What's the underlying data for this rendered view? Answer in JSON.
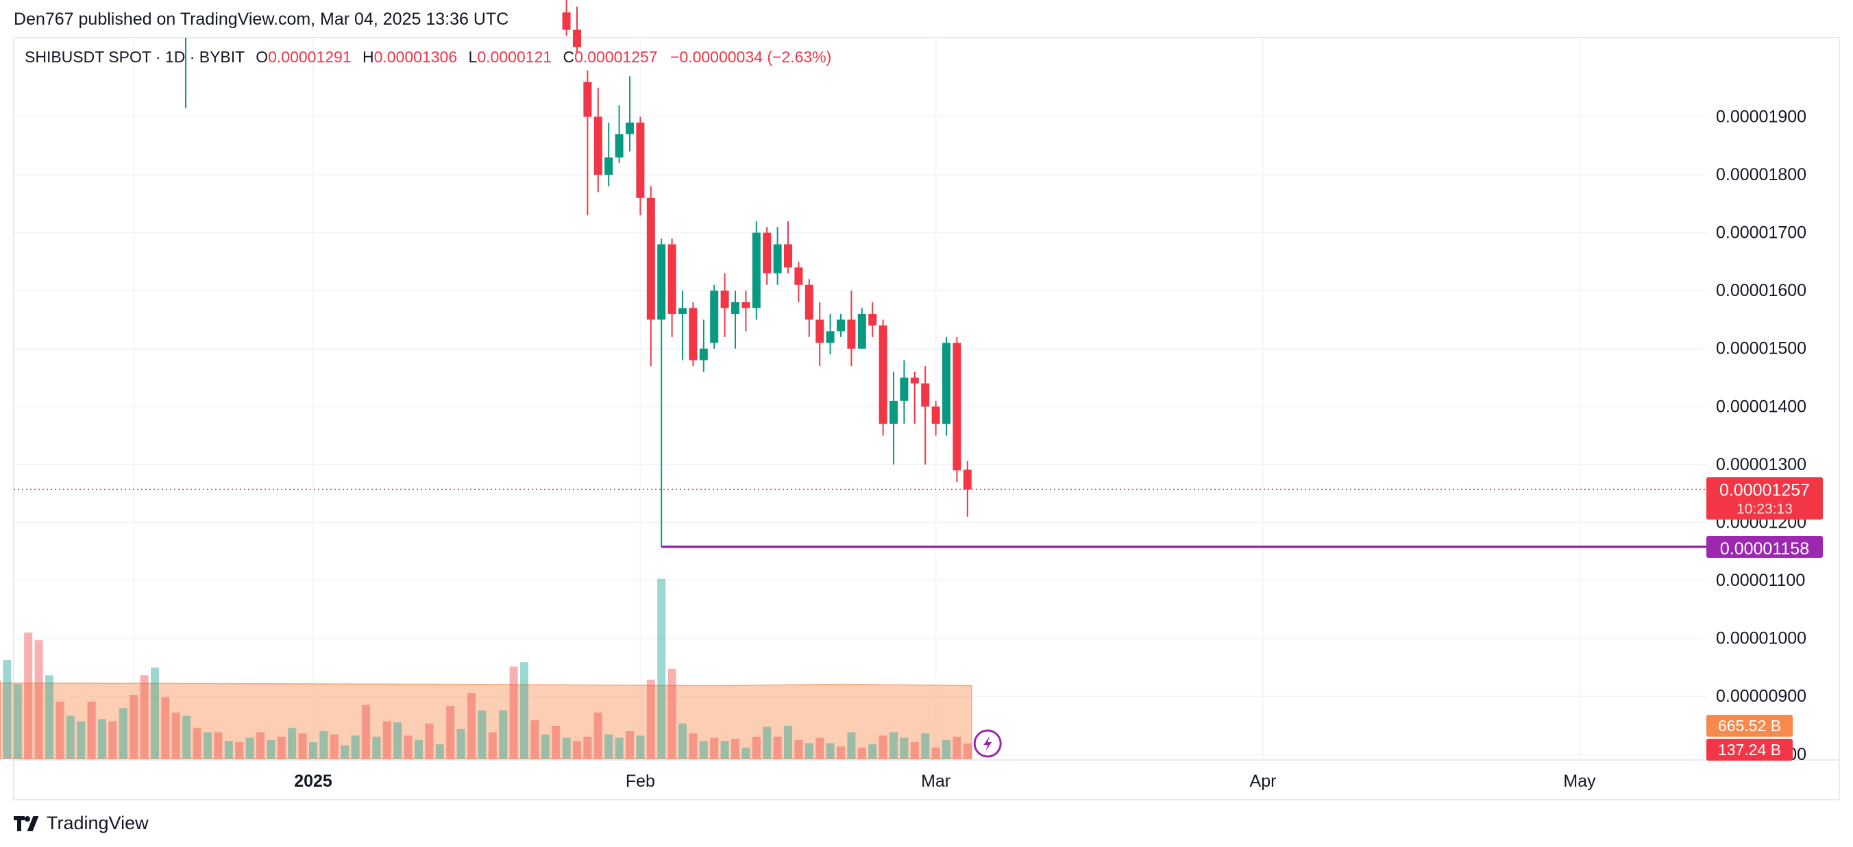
{
  "header": {
    "published": "Den767 published on TradingView.com, Mar 04, 2025 13:36 UTC"
  },
  "legend": {
    "symbol": "SHIBUSDT SPOT · 1D · BYBIT",
    "open_label": "O",
    "open": "0.00001291",
    "high_label": "H",
    "high": "0.00001306",
    "low_label": "L",
    "low": "0.0000121",
    "close_label": "C",
    "close": "0.00001257",
    "change": "−0.00000034 (−2.63%)"
  },
  "footer": {
    "brand": "TradingView",
    "logo_icon": "tradingview-logo-icon"
  },
  "colors": {
    "up": "#089981",
    "down": "#f23645",
    "support": "#9c27b0",
    "volume_ma": "#fbbd99",
    "volume_ma_label": "#f7894d"
  },
  "chart_data": {
    "type": "candlestick",
    "symbol": "SHIBUSDT",
    "interval": "1D",
    "exchange": "BYBIT",
    "y_tick_labels": [
      "0.00001900",
      "0.00001800",
      "0.00001700",
      "0.00001600",
      "0.00001500",
      "0.00001400",
      "0.00001300",
      "0.00001200",
      "0.00001100",
      "0.00001000",
      "0.00000900",
      "0.00000800"
    ],
    "x_tick_labels": [
      "2025",
      "Feb",
      "Mar",
      "Apr",
      "May"
    ],
    "ylim": [
      7.3e-06,
      2.04e-05
    ],
    "date_range": [
      "2024-11-29",
      "2025-05-31"
    ],
    "current_price": "0.00001257",
    "countdown": "10:23:13",
    "support_level": {
      "label": "0.00001158",
      "value": 1.158e-05,
      "from": "2025-02-03"
    },
    "volume_labels": {
      "ma": "665.52 B",
      "last": "137.24 B"
    },
    "candles": [
      {
        "d": "2025-01-25",
        "o": 2.08e-05,
        "h": 2.12e-05,
        "l": 2.04e-05,
        "c": 2.05e-05
      },
      {
        "d": "2025-01-26",
        "o": 2.05e-05,
        "h": 2.09e-05,
        "l": 2.01e-05,
        "c": 2.02e-05
      },
      {
        "d": "2025-01-27",
        "o": 1.96e-05,
        "h": 1.98e-05,
        "l": 1.73e-05,
        "c": 1.9e-05
      },
      {
        "d": "2025-01-28",
        "o": 1.9e-05,
        "h": 1.95e-05,
        "l": 1.77e-05,
        "c": 1.8e-05
      },
      {
        "d": "2025-01-29",
        "o": 1.8e-05,
        "h": 1.89e-05,
        "l": 1.78e-05,
        "c": 1.83e-05
      },
      {
        "d": "2025-01-30",
        "o": 1.83e-05,
        "h": 1.92e-05,
        "l": 1.82e-05,
        "c": 1.87e-05
      },
      {
        "d": "2025-01-31",
        "o": 1.87e-05,
        "h": 1.97e-05,
        "l": 1.84e-05,
        "c": 1.89e-05
      },
      {
        "d": "2025-02-01",
        "o": 1.89e-05,
        "h": 1.9e-05,
        "l": 1.73e-05,
        "c": 1.76e-05
      },
      {
        "d": "2025-02-02",
        "o": 1.76e-05,
        "h": 1.78e-05,
        "l": 1.47e-05,
        "c": 1.55e-05
      },
      {
        "d": "2025-02-03",
        "o": 1.55e-05,
        "h": 1.69e-05,
        "l": 1.158e-05,
        "c": 1.68e-05
      },
      {
        "d": "2025-02-04",
        "o": 1.68e-05,
        "h": 1.69e-05,
        "l": 1.52e-05,
        "c": 1.56e-05
      },
      {
        "d": "2025-02-05",
        "o": 1.56e-05,
        "h": 1.6e-05,
        "l": 1.48e-05,
        "c": 1.57e-05
      },
      {
        "d": "2025-02-06",
        "o": 1.57e-05,
        "h": 1.58e-05,
        "l": 1.47e-05,
        "c": 1.48e-05
      },
      {
        "d": "2025-02-07",
        "o": 1.48e-05,
        "h": 1.55e-05,
        "l": 1.46e-05,
        "c": 1.5e-05
      },
      {
        "d": "2025-02-08",
        "o": 1.51e-05,
        "h": 1.61e-05,
        "l": 1.5e-05,
        "c": 1.6e-05
      },
      {
        "d": "2025-02-09",
        "o": 1.6e-05,
        "h": 1.63e-05,
        "l": 1.52e-05,
        "c": 1.57e-05
      },
      {
        "d": "2025-02-10",
        "o": 1.56e-05,
        "h": 1.6e-05,
        "l": 1.5e-05,
        "c": 1.58e-05
      },
      {
        "d": "2025-02-11",
        "o": 1.58e-05,
        "h": 1.6e-05,
        "l": 1.53e-05,
        "c": 1.57e-05
      },
      {
        "d": "2025-02-12",
        "o": 1.57e-05,
        "h": 1.72e-05,
        "l": 1.55e-05,
        "c": 1.7e-05
      },
      {
        "d": "2025-02-13",
        "o": 1.7e-05,
        "h": 1.71e-05,
        "l": 1.61e-05,
        "c": 1.63e-05
      },
      {
        "d": "2025-02-14",
        "o": 1.63e-05,
        "h": 1.71e-05,
        "l": 1.61e-05,
        "c": 1.68e-05
      },
      {
        "d": "2025-02-15",
        "o": 1.68e-05,
        "h": 1.72e-05,
        "l": 1.63e-05,
        "c": 1.64e-05
      },
      {
        "d": "2025-02-16",
        "o": 1.64e-05,
        "h": 1.65e-05,
        "l": 1.58e-05,
        "c": 1.61e-05
      },
      {
        "d": "2025-02-17",
        "o": 1.61e-05,
        "h": 1.62e-05,
        "l": 1.52e-05,
        "c": 1.55e-05
      },
      {
        "d": "2025-02-18",
        "o": 1.55e-05,
        "h": 1.58e-05,
        "l": 1.47e-05,
        "c": 1.51e-05
      },
      {
        "d": "2025-02-19",
        "o": 1.51e-05,
        "h": 1.56e-05,
        "l": 1.49e-05,
        "c": 1.53e-05
      },
      {
        "d": "2025-02-20",
        "o": 1.53e-05,
        "h": 1.56e-05,
        "l": 1.52e-05,
        "c": 1.55e-05
      },
      {
        "d": "2025-02-21",
        "o": 1.55e-05,
        "h": 1.6e-05,
        "l": 1.47e-05,
        "c": 1.5e-05
      },
      {
        "d": "2025-02-22",
        "o": 1.5e-05,
        "h": 1.57e-05,
        "l": 1.5e-05,
        "c": 1.56e-05
      },
      {
        "d": "2025-02-23",
        "o": 1.56e-05,
        "h": 1.58e-05,
        "l": 1.52e-05,
        "c": 1.54e-05
      },
      {
        "d": "2025-02-24",
        "o": 1.54e-05,
        "h": 1.55e-05,
        "l": 1.35e-05,
        "c": 1.37e-05
      },
      {
        "d": "2025-02-25",
        "o": 1.37e-05,
        "h": 1.46e-05,
        "l": 1.3e-05,
        "c": 1.41e-05
      },
      {
        "d": "2025-02-26",
        "o": 1.41e-05,
        "h": 1.48e-05,
        "l": 1.37e-05,
        "c": 1.45e-05
      },
      {
        "d": "2025-02-27",
        "o": 1.45e-05,
        "h": 1.46e-05,
        "l": 1.37e-05,
        "c": 1.44e-05
      },
      {
        "d": "2025-02-28",
        "o": 1.44e-05,
        "h": 1.47e-05,
        "l": 1.3e-05,
        "c": 1.4e-05
      },
      {
        "d": "2025-03-01",
        "o": 1.4e-05,
        "h": 1.41e-05,
        "l": 1.35e-05,
        "c": 1.37e-05
      },
      {
        "d": "2025-03-02",
        "o": 1.37e-05,
        "h": 1.52e-05,
        "l": 1.35e-05,
        "c": 1.51e-05
      },
      {
        "d": "2025-03-03",
        "o": 1.51e-05,
        "h": 1.52e-05,
        "l": 1.27e-05,
        "c": 1.29e-05
      },
      {
        "d": "2025-03-04",
        "o": 1.291e-05,
        "h": 1.306e-05,
        "l": 1.21e-05,
        "c": 1.257e-05
      }
    ],
    "volumes": {
      "unit": "B",
      "ma_start": 690,
      "ma_end": 665.52,
      "bars": [
        {
          "d": "2024-11-30",
          "v": 1100,
          "up": true
        },
        {
          "d": "2024-12-01",
          "v": 1060,
          "up": false
        },
        {
          "d": "2024-12-02",
          "v": 720,
          "up": false
        },
        {
          "d": "2024-12-03",
          "v": 900,
          "up": true
        },
        {
          "d": "2024-12-04",
          "v": 680,
          "up": true
        },
        {
          "d": "2024-12-05",
          "v": 1150,
          "up": false
        },
        {
          "d": "2024-12-06",
          "v": 1080,
          "up": false
        },
        {
          "d": "2024-12-07",
          "v": 760,
          "up": true
        },
        {
          "d": "2024-12-08",
          "v": 520,
          "up": false
        },
        {
          "d": "2024-12-09",
          "v": 390,
          "up": true
        },
        {
          "d": "2024-12-10",
          "v": 340,
          "up": true
        },
        {
          "d": "2024-12-11",
          "v": 520,
          "up": false
        },
        {
          "d": "2024-12-12",
          "v": 360,
          "up": true
        },
        {
          "d": "2024-12-13",
          "v": 340,
          "up": false
        },
        {
          "d": "2024-12-14",
          "v": 460,
          "up": true
        },
        {
          "d": "2024-12-15",
          "v": 580,
          "up": false
        },
        {
          "d": "2024-12-16",
          "v": 760,
          "up": false
        },
        {
          "d": "2024-12-17",
          "v": 830,
          "up": true
        },
        {
          "d": "2024-12-18",
          "v": 560,
          "up": false
        },
        {
          "d": "2024-12-19",
          "v": 420,
          "up": false
        },
        {
          "d": "2024-12-20",
          "v": 390,
          "up": true
        },
        {
          "d": "2024-12-21",
          "v": 280,
          "up": false
        },
        {
          "d": "2024-12-22",
          "v": 240,
          "up": true
        },
        {
          "d": "2024-12-23",
          "v": 240,
          "up": false
        },
        {
          "d": "2024-12-24",
          "v": 160,
          "up": true
        },
        {
          "d": "2024-12-25",
          "v": 150,
          "up": false
        },
        {
          "d": "2024-12-26",
          "v": 190,
          "up": true
        },
        {
          "d": "2024-12-27",
          "v": 240,
          "up": false
        },
        {
          "d": "2024-12-28",
          "v": 170,
          "up": true
        },
        {
          "d": "2024-12-29",
          "v": 200,
          "up": false
        },
        {
          "d": "2024-12-30",
          "v": 280,
          "up": true
        },
        {
          "d": "2024-12-31",
          "v": 230,
          "up": false
        },
        {
          "d": "2025-01-01",
          "v": 150,
          "up": true
        },
        {
          "d": "2025-01-02",
          "v": 250,
          "up": true
        },
        {
          "d": "2025-01-03",
          "v": 220,
          "up": false
        },
        {
          "d": "2025-01-04",
          "v": 120,
          "up": true
        },
        {
          "d": "2025-01-05",
          "v": 210,
          "up": true
        },
        {
          "d": "2025-01-06",
          "v": 490,
          "up": false
        },
        {
          "d": "2025-01-07",
          "v": 200,
          "up": true
        },
        {
          "d": "2025-01-08",
          "v": 340,
          "up": false
        },
        {
          "d": "2025-01-09",
          "v": 330,
          "up": true
        },
        {
          "d": "2025-01-10",
          "v": 210,
          "up": false
        },
        {
          "d": "2025-01-11",
          "v": 170,
          "up": true
        },
        {
          "d": "2025-01-12",
          "v": 320,
          "up": false
        },
        {
          "d": "2025-01-13",
          "v": 130,
          "up": true
        },
        {
          "d": "2025-01-14",
          "v": 480,
          "up": false
        },
        {
          "d": "2025-01-15",
          "v": 270,
          "up": true
        },
        {
          "d": "2025-01-16",
          "v": 600,
          "up": false
        },
        {
          "d": "2025-01-17",
          "v": 440,
          "up": true
        },
        {
          "d": "2025-01-18",
          "v": 240,
          "up": false
        },
        {
          "d": "2025-01-19",
          "v": 440,
          "up": true
        },
        {
          "d": "2025-01-20",
          "v": 840,
          "up": false
        },
        {
          "d": "2025-01-21",
          "v": 880,
          "up": true
        },
        {
          "d": "2025-01-22",
          "v": 350,
          "up": false
        },
        {
          "d": "2025-01-23",
          "v": 220,
          "up": true
        },
        {
          "d": "2025-01-24",
          "v": 300,
          "up": false
        },
        {
          "d": "2025-01-25",
          "v": 190,
          "up": true
        },
        {
          "d": "2025-01-26",
          "v": 160,
          "up": false
        },
        {
          "d": "2025-01-27",
          "v": 200,
          "up": false
        },
        {
          "d": "2025-01-28",
          "v": 420,
          "up": false
        },
        {
          "d": "2025-01-29",
          "v": 220,
          "up": true
        },
        {
          "d": "2025-01-30",
          "v": 190,
          "up": true
        },
        {
          "d": "2025-01-31",
          "v": 250,
          "up": false
        },
        {
          "d": "2025-02-01",
          "v": 210,
          "up": true
        },
        {
          "d": "2025-02-02",
          "v": 720,
          "up": false
        },
        {
          "d": "2025-02-03",
          "v": 1640,
          "up": true
        },
        {
          "d": "2025-02-04",
          "v": 820,
          "up": false
        },
        {
          "d": "2025-02-05",
          "v": 320,
          "up": true
        },
        {
          "d": "2025-02-06",
          "v": 230,
          "up": false
        },
        {
          "d": "2025-02-07",
          "v": 160,
          "up": true
        },
        {
          "d": "2025-02-08",
          "v": 190,
          "up": false
        },
        {
          "d": "2025-02-09",
          "v": 160,
          "up": true
        },
        {
          "d": "2025-02-10",
          "v": 180,
          "up": false
        },
        {
          "d": "2025-02-11",
          "v": 100,
          "up": true
        },
        {
          "d": "2025-02-12",
          "v": 200,
          "up": false
        },
        {
          "d": "2025-02-13",
          "v": 290,
          "up": true
        },
        {
          "d": "2025-02-14",
          "v": 200,
          "up": false
        },
        {
          "d": "2025-02-15",
          "v": 300,
          "up": true
        },
        {
          "d": "2025-02-16",
          "v": 170,
          "up": false
        },
        {
          "d": "2025-02-17",
          "v": 140,
          "up": true
        },
        {
          "d": "2025-02-18",
          "v": 190,
          "up": false
        },
        {
          "d": "2025-02-19",
          "v": 140,
          "up": true
        },
        {
          "d": "2025-02-20",
          "v": 110,
          "up": false
        },
        {
          "d": "2025-02-21",
          "v": 240,
          "up": true
        },
        {
          "d": "2025-02-22",
          "v": 100,
          "up": false
        },
        {
          "d": "2025-02-23",
          "v": 130,
          "up": true
        },
        {
          "d": "2025-02-24",
          "v": 210,
          "up": false
        },
        {
          "d": "2025-02-25",
          "v": 240,
          "up": true
        },
        {
          "d": "2025-02-26",
          "v": 190,
          "up": true
        },
        {
          "d": "2025-02-27",
          "v": 150,
          "up": false
        },
        {
          "d": "2025-02-28",
          "v": 230,
          "up": true
        },
        {
          "d": "2025-03-01",
          "v": 100,
          "up": false
        },
        {
          "d": "2025-03-02",
          "v": 170,
          "up": true
        },
        {
          "d": "2025-03-03",
          "v": 200,
          "up": false
        },
        {
          "d": "2025-03-04",
          "v": 137.24,
          "up": false
        }
      ]
    }
  }
}
